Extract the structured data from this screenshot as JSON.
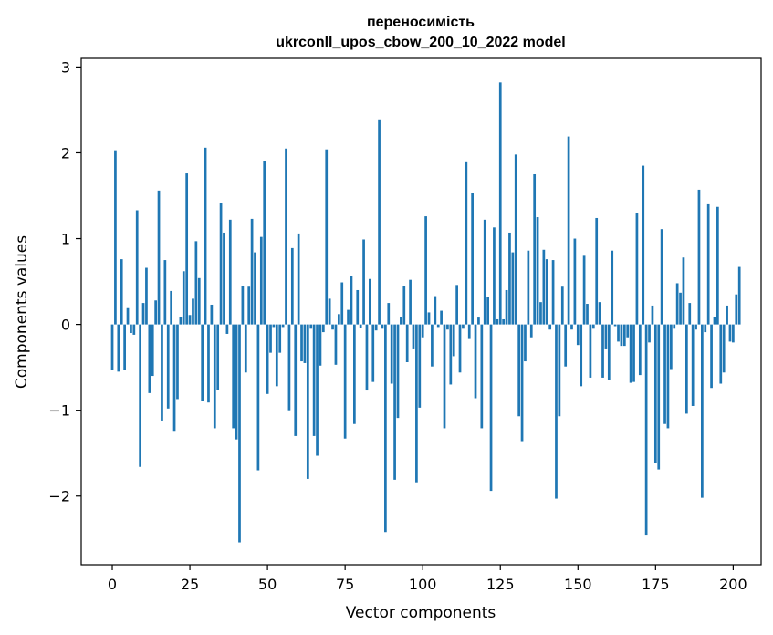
{
  "chart_data": {
    "type": "bar",
    "title_line1": "переносимість",
    "title_line2": "ukrconll_upos_cbow_200_10_2022 model",
    "xlabel": "Vector components",
    "ylabel": "Components values",
    "xlim": [
      -10,
      209
    ],
    "ylim": [
      -2.8,
      3.1
    ],
    "xticks": [
      0,
      25,
      50,
      75,
      100,
      125,
      150,
      175,
      200
    ],
    "yticks": [
      -2,
      -1,
      0,
      1,
      2,
      3
    ],
    "ytick_labels": [
      "−2",
      "−1",
      "0",
      "1",
      "2",
      "3"
    ],
    "bar_color": "#1f77b4",
    "values": [
      -0.53,
      2.03,
      -0.55,
      0.76,
      -0.53,
      0.19,
      -0.1,
      -0.12,
      1.33,
      -1.66,
      0.25,
      0.66,
      -0.8,
      -0.6,
      0.28,
      1.56,
      -1.12,
      0.75,
      -0.98,
      0.39,
      -1.24,
      -0.87,
      0.09,
      0.62,
      1.76,
      0.11,
      0.3,
      0.97,
      0.54,
      -0.89,
      2.06,
      -0.91,
      0.23,
      -1.21,
      -0.76,
      1.42,
      1.07,
      -0.11,
      1.22,
      -1.21,
      -1.34,
      -2.54,
      0.45,
      -0.56,
      0.44,
      1.23,
      0.84,
      -1.7,
      1.02,
      1.9,
      -0.81,
      -0.33,
      -0.03,
      -0.72,
      -0.33,
      -0.03,
      2.05,
      -1.0,
      0.89,
      -1.3,
      1.06,
      -0.43,
      -0.45,
      -1.8,
      -0.05,
      -1.3,
      -1.53,
      -0.48,
      -0.09,
      2.04,
      0.3,
      -0.06,
      -0.47,
      0.12,
      0.49,
      -1.33,
      0.17,
      0.56,
      -1.16,
      0.4,
      -0.04,
      0.99,
      -0.77,
      0.53,
      -0.67,
      -0.07,
      2.39,
      -0.05,
      -2.42,
      0.25,
      -0.69,
      -1.81,
      -1.09,
      0.09,
      0.45,
      -0.44,
      0.52,
      -0.28,
      -1.84,
      -0.97,
      -0.15,
      1.26,
      0.14,
      -0.49,
      0.33,
      -0.03,
      0.16,
      -1.21,
      -0.06,
      -0.7,
      -0.37,
      0.46,
      -0.56,
      -0.05,
      1.89,
      -0.17,
      1.53,
      -0.86,
      0.08,
      -1.21,
      1.22,
      0.32,
      -1.94,
      1.13,
      0.06,
      2.82,
      0.06,
      0.4,
      1.07,
      0.84,
      1.98,
      -1.07,
      -1.36,
      -0.43,
      0.86,
      -0.15,
      1.75,
      1.25,
      0.26,
      0.87,
      0.76,
      -0.06,
      0.75,
      -2.03,
      -1.07,
      0.44,
      -0.49,
      2.19,
      -0.06,
      1.0,
      -0.24,
      -0.72,
      0.8,
      0.24,
      -0.62,
      -0.05,
      1.24,
      0.26,
      -0.62,
      -0.28,
      -0.65,
      0.86,
      -0.02,
      -0.2,
      -0.25,
      -0.25,
      -0.15,
      -0.68,
      -0.67,
      1.3,
      -0.59,
      1.85,
      -2.45,
      -0.21,
      0.22,
      -1.62,
      -1.69,
      1.11,
      -1.16,
      -1.21,
      -0.52,
      -0.05,
      0.48,
      0.37,
      0.78,
      -1.04,
      0.25,
      -0.95,
      -0.06,
      1.57,
      -2.02,
      -0.09,
      1.4,
      -0.74,
      0.09,
      1.37,
      -0.69,
      -0.56,
      0.22,
      -0.2,
      -0.21,
      0.35,
      0.67
    ]
  }
}
